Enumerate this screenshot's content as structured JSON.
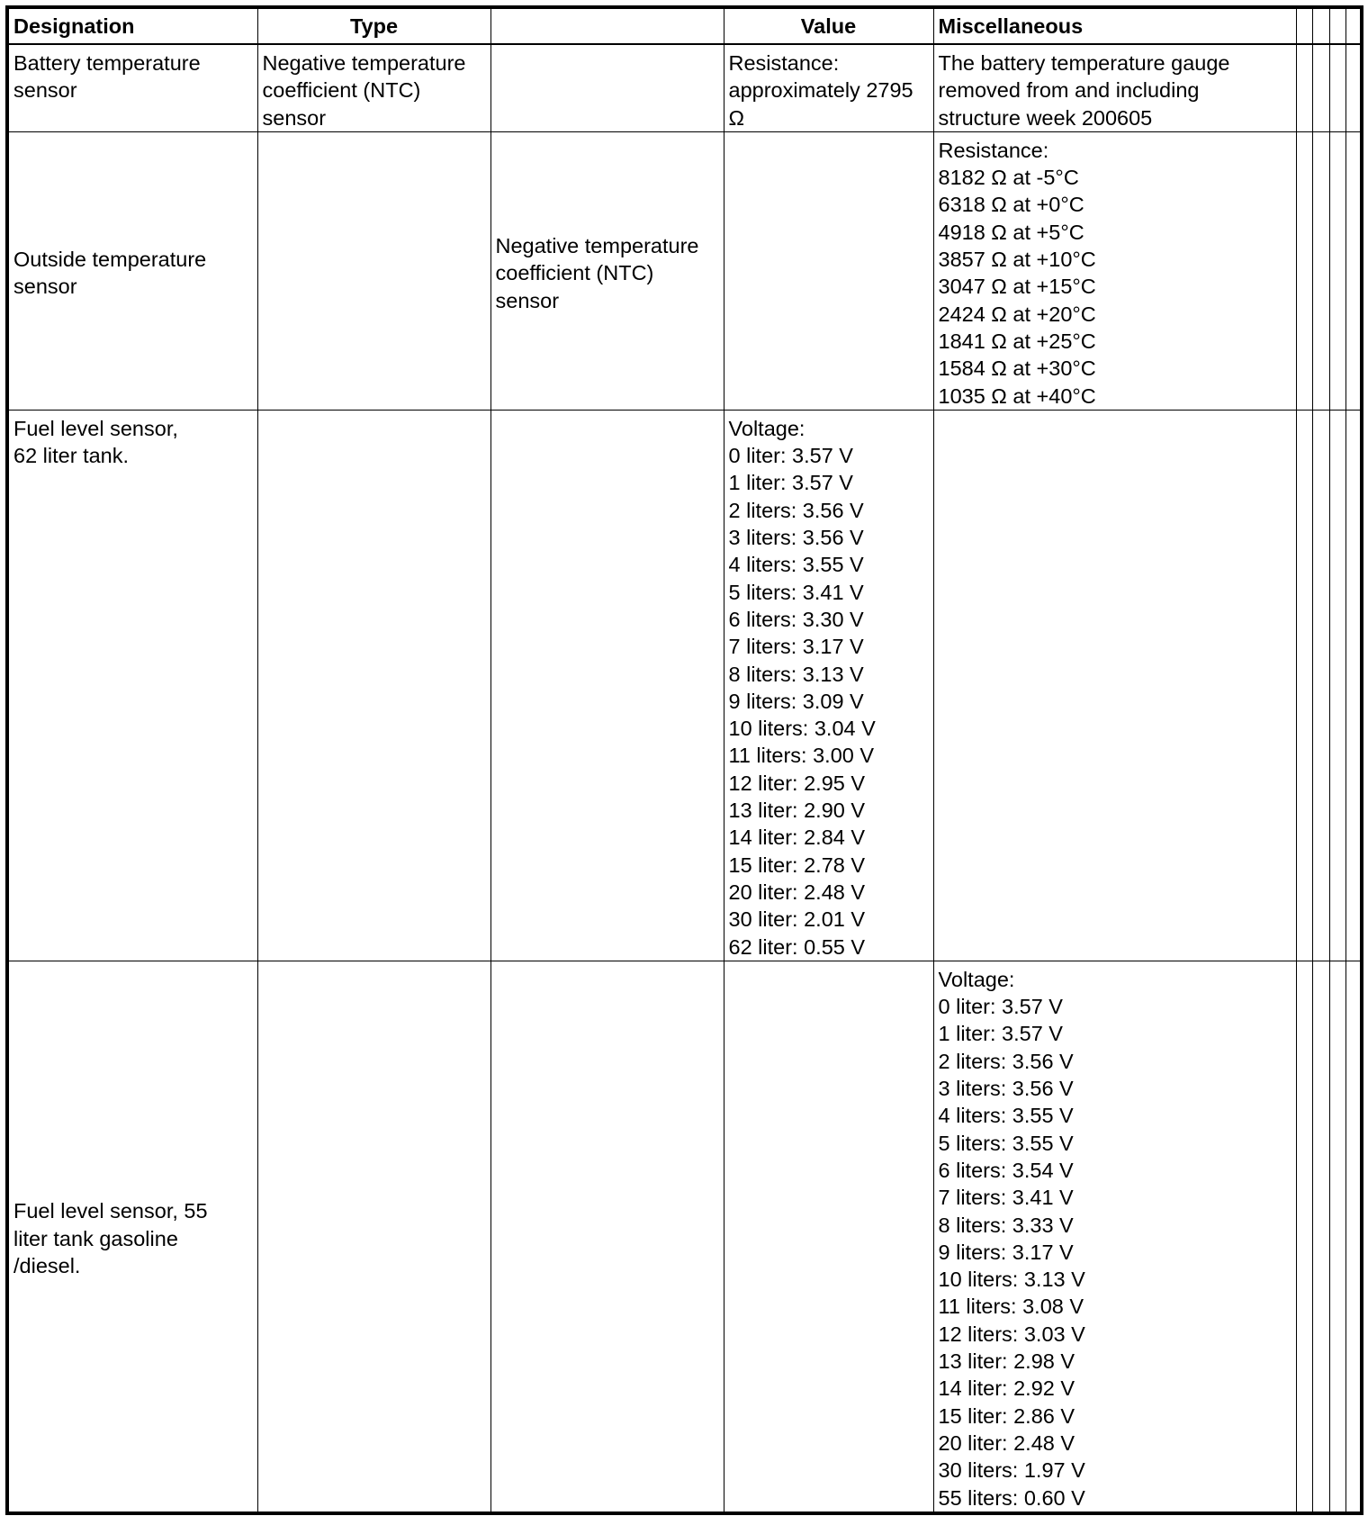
{
  "headers": [
    "Designation",
    "Type",
    "",
    "Value",
    "Miscellaneous"
  ],
  "rows": [
    {
      "designation": [
        "Battery temperature",
        "sensor"
      ],
      "type": [
        "Negative temperature",
        "coefficient (NTC)",
        "sensor"
      ],
      "col3": [],
      "value": [
        "Resistance:",
        "approximately 2795",
        "Ω"
      ],
      "misc": [
        "The battery temperature gauge",
        "removed from and including",
        "structure week 200605"
      ]
    },
    {
      "designation": [
        "Outside temperature",
        "sensor"
      ],
      "type": [],
      "col3": [
        "Negative temperature",
        "coefficient (NTC)",
        "sensor"
      ],
      "value": [],
      "misc": [
        "Resistance:",
        "8182 Ω at -5°C",
        "6318 Ω at +0°C",
        "4918 Ω at +5°C",
        "3857 Ω at +10°C",
        "3047 Ω at +15°C",
        "2424 Ω at +20°C",
        "1841 Ω at +25°C",
        "1584 Ω at +30°C",
        "1035 Ω at +40°C"
      ]
    },
    {
      "designation": [
        "Fuel level sensor,",
        "62 liter tank."
      ],
      "type": [],
      "col3": [],
      "value": [
        "Voltage:",
        "0 liter: 3.57 V",
        "1 liter: 3.57 V",
        "2 liters: 3.56 V",
        "3 liters: 3.56 V",
        "4 liters: 3.55 V",
        "5 liters: 3.41 V",
        "6 liters: 3.30 V",
        "7 liters: 3.17 V",
        "8 liters: 3.13 V",
        "9 liters: 3.09 V",
        "10 liters: 3.04 V",
        "11 liters: 3.00 V",
        "12 liter: 2.95 V",
        "13 liter: 2.90 V",
        "14 liter: 2.84 V",
        "15 liter: 2.78 V",
        "20 liter: 2.48 V",
        "30 liter: 2.01 V",
        "62 liter: 0.55 V"
      ],
      "misc": []
    },
    {
      "designation": [
        "Fuel level sensor, 55",
        "liter tank gasoline",
        "/diesel."
      ],
      "type": [],
      "col3": [],
      "value": [],
      "misc": [
        "Voltage:",
        "0 liter: 3.57 V",
        "1 liter: 3.57 V",
        "2 liters: 3.56 V",
        "3 liters: 3.56 V",
        "4 liters: 3.55 V",
        "5 liters: 3.55 V",
        "6 liters: 3.54 V",
        "7 liters: 3.41 V",
        "8 liters: 3.33 V",
        "9 liters: 3.17 V",
        "10 liters: 3.13 V",
        "11 liters: 3.08 V",
        "12 liters: 3.03 V",
        "13 liter: 2.98 V",
        "14 liter: 2.92 V",
        "15 liter: 2.86 V",
        "20 liter: 2.48 V",
        "30 liters: 1.97 V",
        "55 liters: 0.60 V"
      ]
    }
  ]
}
